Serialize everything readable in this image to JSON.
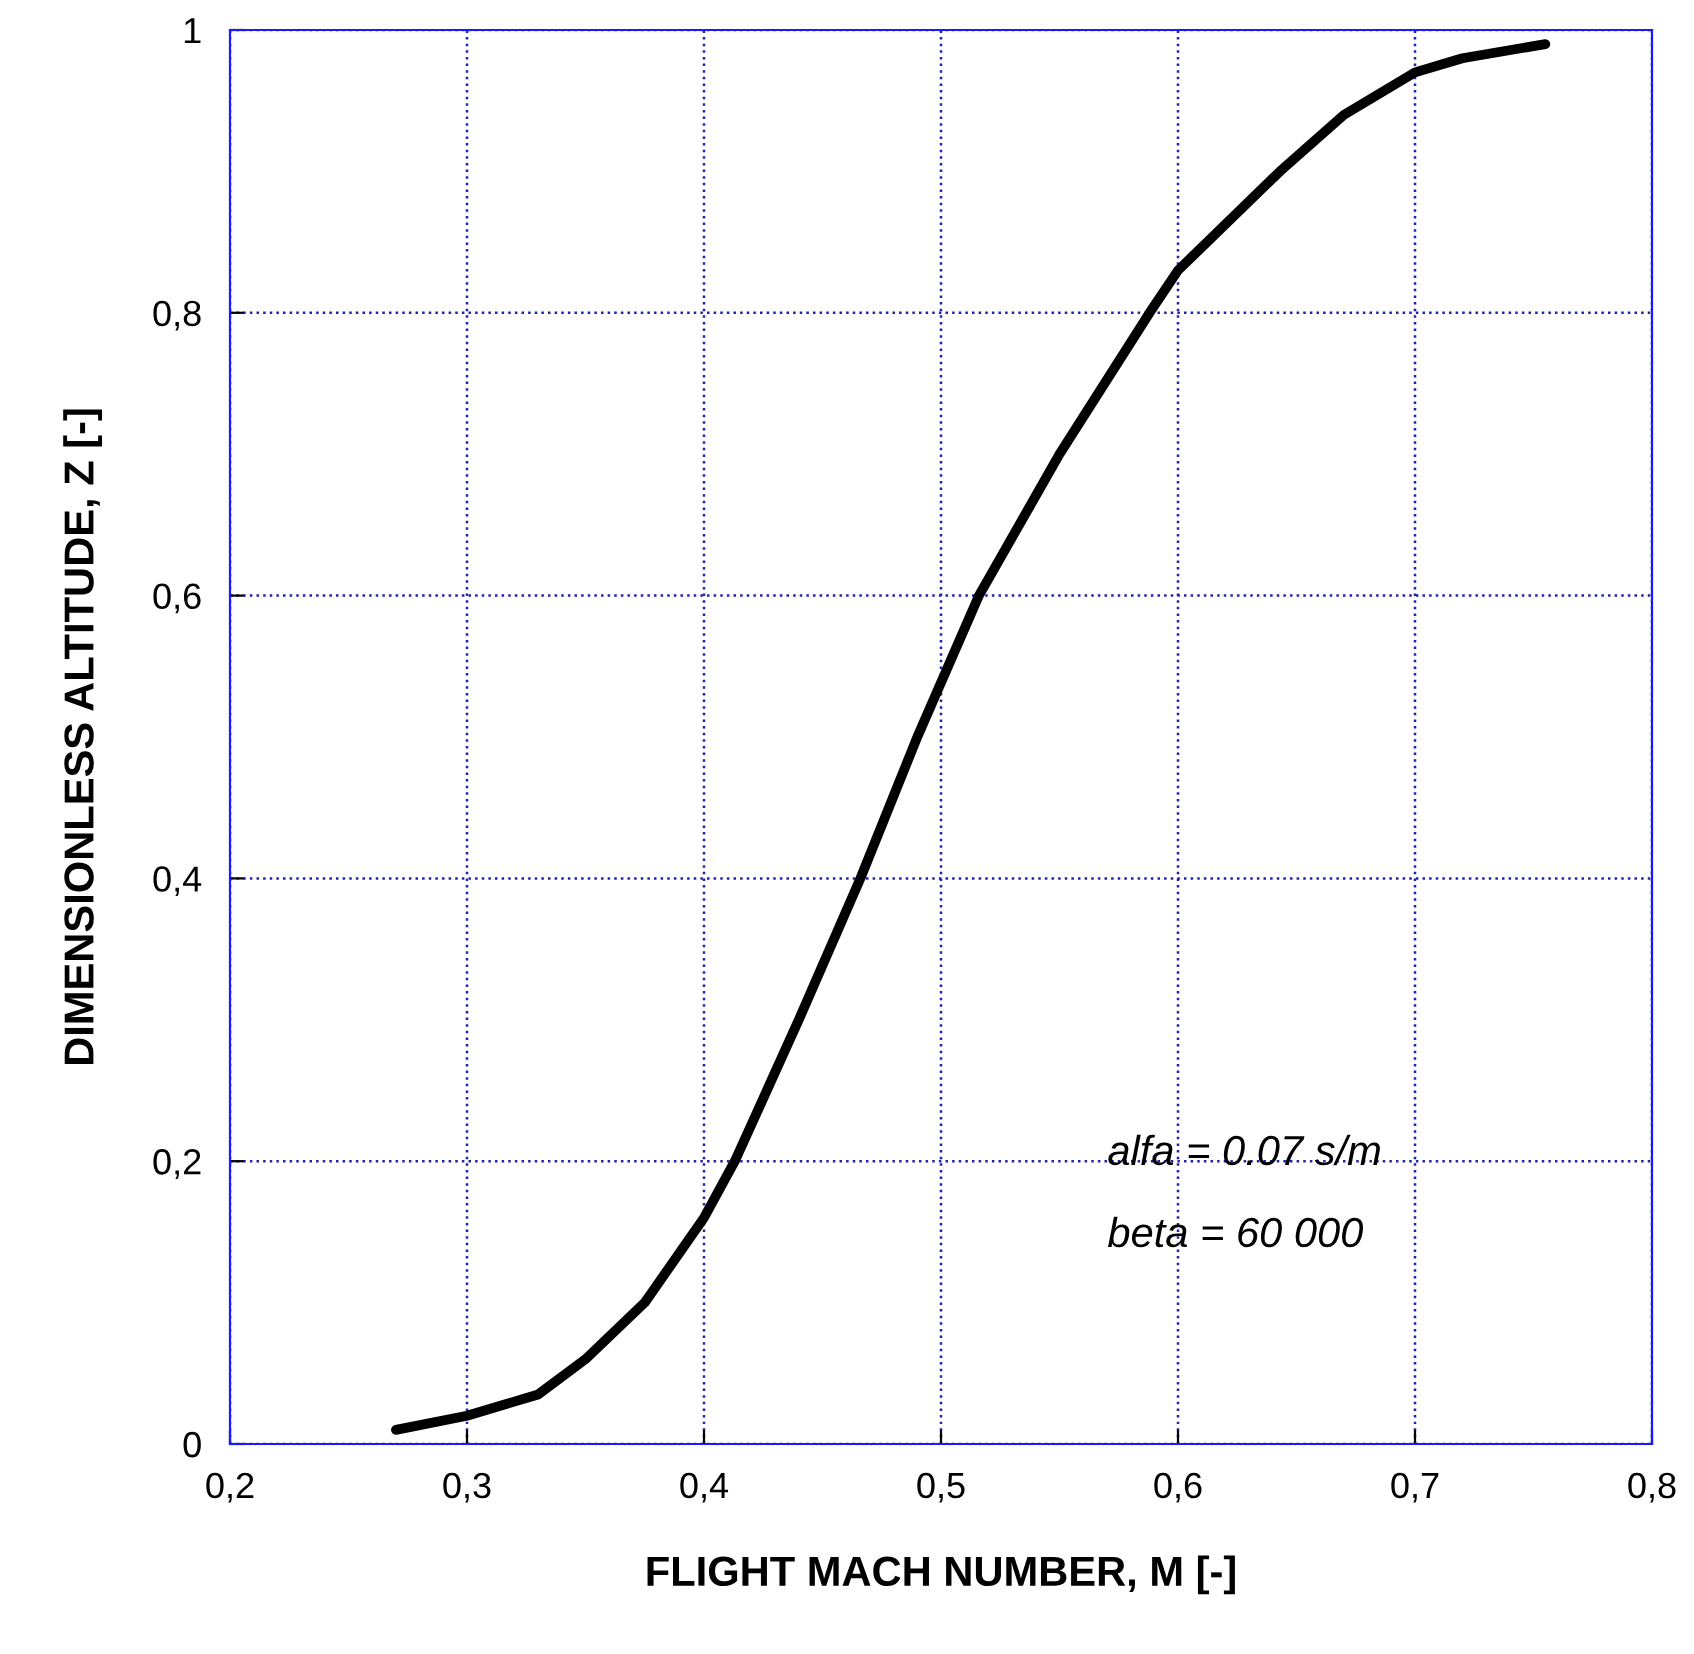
{
  "chart_data": {
    "type": "line",
    "xlabel": "FLIGHT MACH NUMBER, M [-]",
    "ylabel": "DIMENSIONLESS ALTITUDE, Z [-]",
    "x": [
      0.27,
      0.3,
      0.33,
      0.35,
      0.375,
      0.4,
      0.413,
      0.44,
      0.466,
      0.49,
      0.516,
      0.55,
      0.588,
      0.6,
      0.643,
      0.67,
      0.7,
      0.72,
      0.755
    ],
    "series": [
      {
        "color": "#000000",
        "values": [
          0.01,
          0.02,
          0.035,
          0.06,
          0.1,
          0.16,
          0.2,
          0.3,
          0.4,
          0.5,
          0.6,
          0.7,
          0.8,
          0.83,
          0.9,
          0.94,
          0.97,
          0.98,
          0.99
        ]
      }
    ],
    "xlim": [
      0.2,
      0.8
    ],
    "ylim": [
      0,
      1
    ],
    "xticks": [
      {
        "value": 0.2,
        "label": "0,2"
      },
      {
        "value": 0.3,
        "label": "0,3"
      },
      {
        "value": 0.4,
        "label": "0,4"
      },
      {
        "value": 0.5,
        "label": "0,5"
      },
      {
        "value": 0.6,
        "label": "0,6"
      },
      {
        "value": 0.7,
        "label": "0,7"
      },
      {
        "value": 0.8,
        "label": "0,8"
      }
    ],
    "yticks": [
      0,
      {
        "value": 0.2,
        "label": "0,2"
      },
      {
        "value": 0.4,
        "label": "0,4"
      },
      {
        "value": 0.6,
        "label": "0,6"
      },
      {
        "value": 0.8,
        "label": "0,8"
      },
      1
    ],
    "annotations": [
      "alfa = 0.07 s/m",
      "beta = 60 000"
    ],
    "grid": true,
    "line_style": "solid"
  }
}
